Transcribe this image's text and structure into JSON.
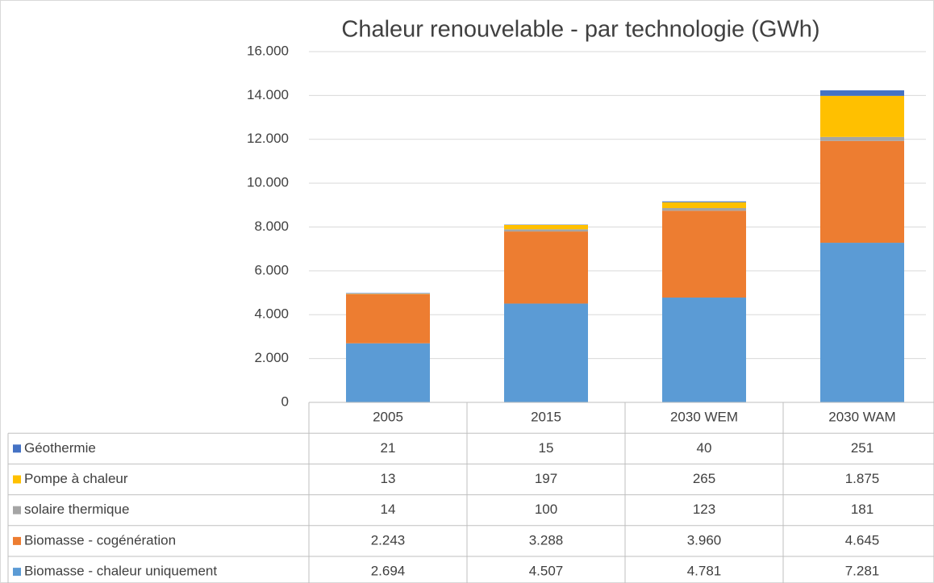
{
  "chart_data": {
    "type": "stacked_bar",
    "title": "Chaleur renouvelable - par technologie (GWh)",
    "categories": [
      "2005",
      "2015",
      "2030 WEM",
      "2030 WAM"
    ],
    "series": [
      {
        "name": "Géothermie",
        "color": "#4472c4",
        "values": [
          21,
          15,
          40,
          251
        ]
      },
      {
        "name": "Pompe à chaleur",
        "color": "#ffc000",
        "values": [
          13,
          197,
          265,
          1875
        ],
        "value_labels": [
          "13",
          "197",
          "265",
          "1.875"
        ]
      },
      {
        "name": "solaire thermique",
        "color": "#a5a5a5",
        "values": [
          14,
          100,
          123,
          181
        ]
      },
      {
        "name": "Biomasse - cogénération",
        "color": "#ed7d31",
        "values": [
          2243,
          3288,
          3960,
          4645
        ],
        "value_labels": [
          "2.243",
          "3.288",
          "3.960",
          "4.645"
        ]
      },
      {
        "name": "Biomasse - chaleur uniquement",
        "color": "#5b9bd5",
        "values": [
          2694,
          4507,
          4781,
          7281
        ],
        "value_labels": [
          "2.694",
          "4.507",
          "4.781",
          "7.281"
        ]
      }
    ],
    "ylim": [
      0,
      16000
    ],
    "yticks": [
      0,
      {
        "value": 2000,
        "label": "2.000"
      },
      {
        "value": 4000,
        "label": "4.000"
      },
      {
        "value": 6000,
        "label": "6.000"
      },
      {
        "value": 8000,
        "label": "8.000"
      },
      {
        "value": 10000,
        "label": "10.000"
      },
      {
        "value": 12000,
        "label": "12.000"
      },
      {
        "value": 14000,
        "label": "14.000"
      },
      {
        "value": 16000,
        "label": "16.000"
      }
    ],
    "grid": true
  }
}
